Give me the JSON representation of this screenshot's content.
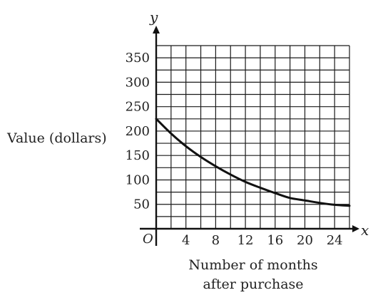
{
  "chart_data": {
    "type": "line",
    "title": "",
    "xlabel": "Number of months after purchase",
    "xlabel_lines": [
      "Number of months",
      "after purchase"
    ],
    "ylabel": "Value (dollars)",
    "x_axis_name": "x",
    "y_axis_name": "y",
    "origin_label": "O",
    "xlim": [
      0,
      26
    ],
    "ylim": [
      0,
      375
    ],
    "x_ticks": [
      4,
      8,
      12,
      16,
      20,
      24
    ],
    "y_ticks": [
      50,
      100,
      150,
      200,
      250,
      300,
      350
    ],
    "grid": true,
    "x_grid_step": 2,
    "y_grid_step": 25,
    "series": [
      {
        "x": [
          0,
          2,
          4,
          6,
          8,
          10,
          12,
          14,
          16,
          18,
          20,
          22,
          24,
          26
        ],
        "y": [
          225,
          195,
          169,
          147,
          128,
          111,
          96,
          84,
          73,
          63,
          58,
          53,
          49,
          47
        ]
      }
    ]
  }
}
